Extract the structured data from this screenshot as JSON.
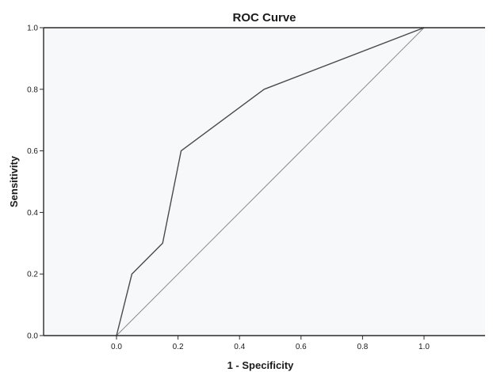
{
  "chart_data": {
    "type": "line",
    "title": "ROC Curve",
    "xlabel": "1 - Specificity",
    "ylabel": "Sensitivity",
    "xlim": [
      0,
      1
    ],
    "ylim": [
      0,
      1
    ],
    "x_ticks": [
      "0.0",
      "0.2",
      "0.4",
      "0.6",
      "0.8",
      "1.0"
    ],
    "y_ticks": [
      "0.0",
      "0.2",
      "0.4",
      "0.6",
      "0.8",
      "1.0"
    ],
    "grid": false,
    "series": [
      {
        "x": [
          0.0,
          0.05,
          0.15,
          0.21,
          0.48,
          1.0
        ],
        "y": [
          0.0,
          0.2,
          0.3,
          0.6,
          0.8,
          1.0
        ]
      },
      {
        "x": [
          0.0,
          1.0
        ],
        "y": [
          0.0,
          1.0
        ]
      }
    ]
  },
  "colors": {
    "background": "#ffffff",
    "plot_background": "#f7f8f9",
    "axis": "#2b2b2b",
    "roc_line": "#4a4a4a",
    "reference_line": "#8a8a8a",
    "text": "#1a1a1a"
  }
}
